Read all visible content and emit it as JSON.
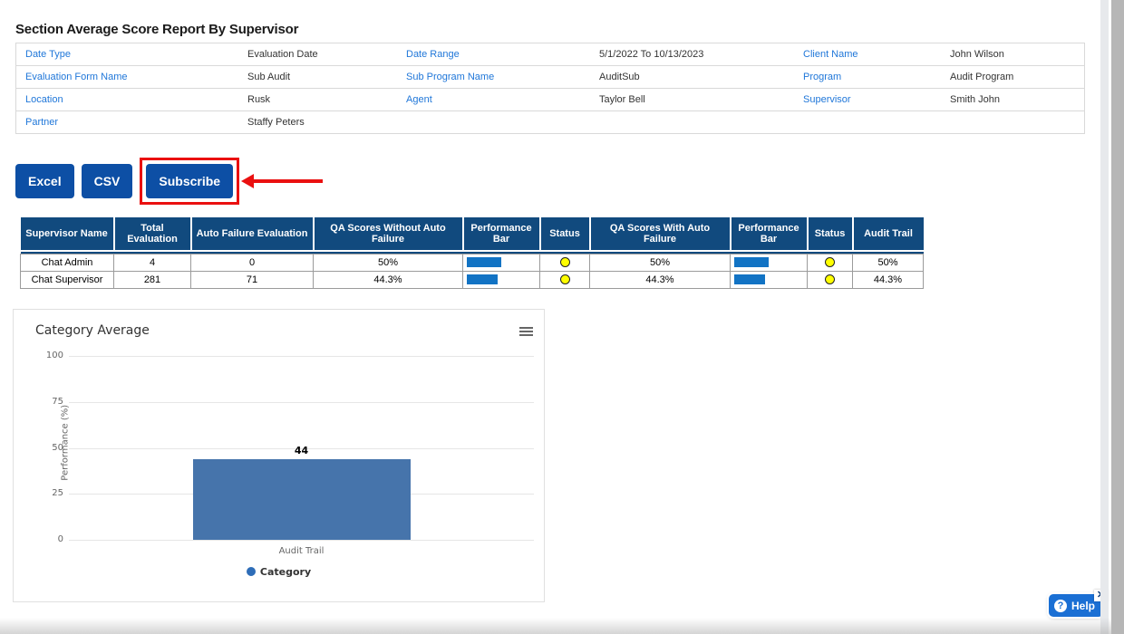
{
  "page_title": "Section Average Score Report By Supervisor",
  "filters": {
    "rows": [
      [
        {
          "label": "Date Type",
          "value": "Evaluation Date"
        },
        {
          "label": "Date Range",
          "value": "5/1/2022 To 10/13/2023"
        },
        {
          "label": "Client Name",
          "value": "John Wilson"
        }
      ],
      [
        {
          "label": "Evaluation Form Name",
          "value": "Sub Audit"
        },
        {
          "label": "Sub Program Name",
          "value": "AuditSub"
        },
        {
          "label": "Program",
          "value": "Audit Program"
        }
      ],
      [
        {
          "label": "Location",
          "value": "Rusk"
        },
        {
          "label": "Agent",
          "value": "Taylor Bell"
        },
        {
          "label": "Supervisor",
          "value": "Smith John"
        }
      ],
      [
        {
          "label": "Partner",
          "value": "Staffy Peters"
        },
        {
          "label": "",
          "value": ""
        },
        {
          "label": "",
          "value": ""
        }
      ]
    ]
  },
  "toolbar": {
    "excel_label": "Excel",
    "csv_label": "CSV",
    "subscribe_label": "Subscribe"
  },
  "table": {
    "headers": [
      "Supervisor Name",
      "Total Evaluation",
      "Auto Failure Evaluation",
      "QA Scores Without Auto Failure",
      "Performance Bar",
      "Status",
      "QA Scores With Auto Failure",
      "Performance Bar",
      "Status",
      "Audit Trail"
    ],
    "rows": [
      {
        "supervisor": "Chat Admin",
        "total": "4",
        "auto_failure": "0",
        "qa_without": "50%",
        "bar_without_pct": 50,
        "status_without": "yellow",
        "qa_with": "50%",
        "bar_with_pct": 50,
        "status_with": "yellow",
        "audit_trail": "50%"
      },
      {
        "supervisor": "Chat Supervisor",
        "total": "281",
        "auto_failure": "71",
        "qa_without": "44.3%",
        "bar_without_pct": 44.3,
        "status_without": "yellow",
        "qa_with": "44.3%",
        "bar_with_pct": 44.3,
        "status_with": "yellow",
        "audit_trail": "44.3%"
      }
    ]
  },
  "chart_data": {
    "type": "bar",
    "title": "Category Average",
    "categories": [
      "Audit Trail"
    ],
    "values": [
      44
    ],
    "series_name": "Category",
    "xlabel": "",
    "ylabel": "Performance (%)",
    "ylim": [
      0,
      100
    ],
    "yticks": [
      100,
      75,
      50,
      25,
      0
    ],
    "grid": true,
    "legend_position": "bottom",
    "bar_color": "#4674ab"
  },
  "help": {
    "label": "Help",
    "close_glyph": "✕",
    "question_glyph": "?"
  },
  "colors": {
    "table_header_navy": "#114a7e",
    "button_blue": "#0d4fa5",
    "performance_bar_blue": "#1273c4",
    "status_yellow": "#ffff00",
    "link_blue": "#2077d9",
    "annotation_red": "#ea1010",
    "chart_bar_blue": "#4674ab",
    "help_blue": "#1a6fd4"
  }
}
